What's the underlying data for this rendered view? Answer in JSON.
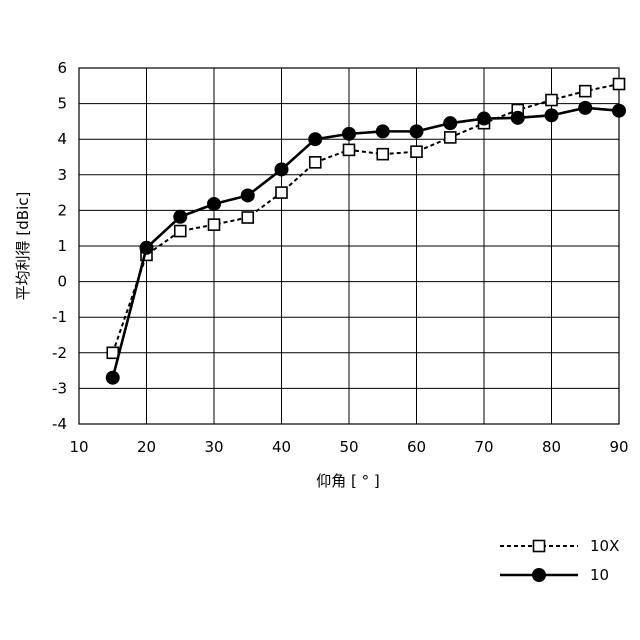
{
  "chart_data": {
    "type": "line",
    "xlabel": "仰角 [ ° ]",
    "ylabel": "平均利得 [dBic]",
    "xlim": [
      10,
      90
    ],
    "ylim": [
      -4,
      6
    ],
    "x_ticks": [
      "10",
      "20",
      "30",
      "40",
      "50",
      "60",
      "70",
      "80",
      "90"
    ],
    "y_ticks": [
      "-4",
      "-3",
      "-2",
      "-1",
      "0",
      "1",
      "2",
      "3",
      "4",
      "5",
      "6"
    ],
    "grid": true,
    "legend_position": "bottom-right",
    "series": [
      {
        "name": "10X",
        "line_style": "dashed",
        "marker": "open-square",
        "color": "#000000",
        "x": [
          15,
          20,
          25,
          30,
          35,
          40,
          45,
          50,
          55,
          60,
          65,
          70,
          75,
          80,
          85,
          90
        ],
        "values": [
          -2.0,
          0.75,
          1.42,
          1.6,
          1.8,
          2.5,
          3.35,
          3.7,
          3.58,
          3.65,
          4.05,
          4.45,
          4.82,
          5.1,
          5.35,
          5.55
        ]
      },
      {
        "name": "10",
        "line_style": "solid",
        "marker": "filled-circle",
        "color": "#000000",
        "x": [
          15,
          20,
          25,
          30,
          35,
          40,
          45,
          50,
          55,
          60,
          65,
          70,
          75,
          80,
          85,
          90
        ],
        "values": [
          -2.7,
          0.95,
          1.82,
          2.18,
          2.42,
          3.15,
          4.0,
          4.15,
          4.22,
          4.22,
          4.45,
          4.58,
          4.6,
          4.67,
          4.88,
          4.8
        ]
      }
    ]
  }
}
